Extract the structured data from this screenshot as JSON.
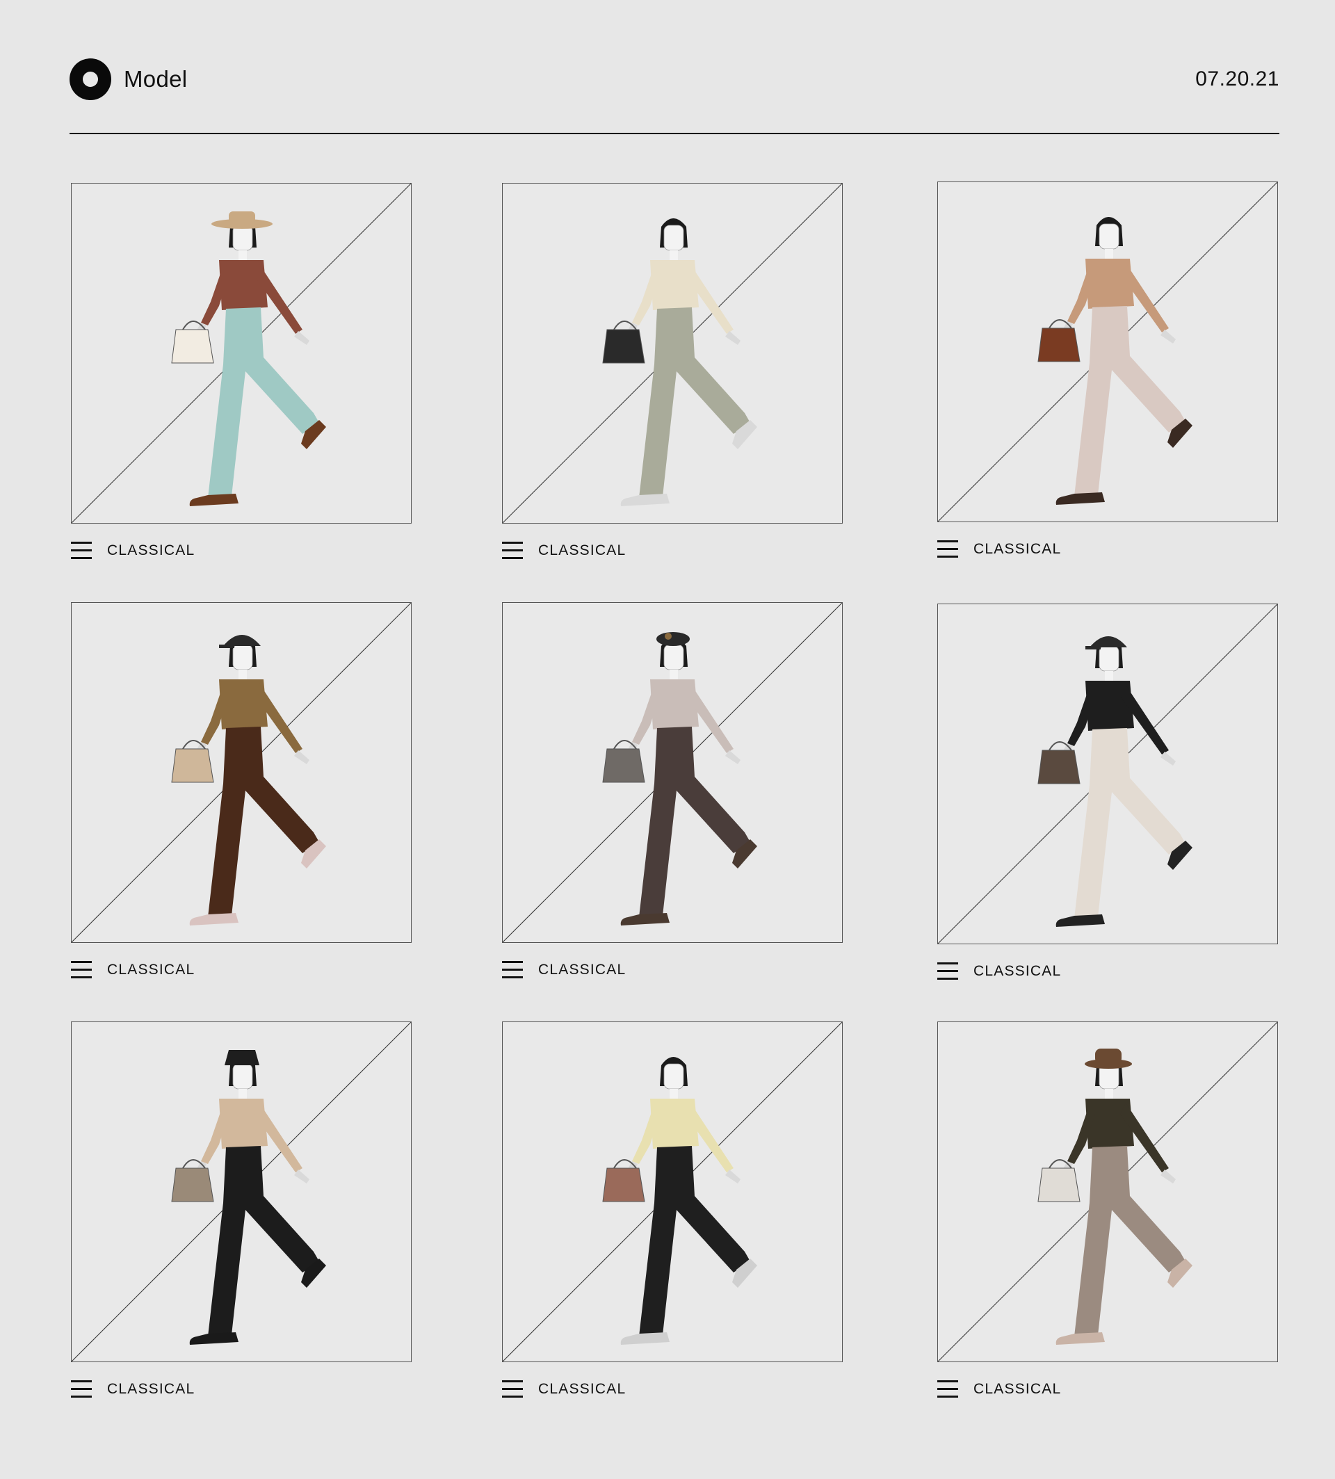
{
  "header": {
    "brand": "Model",
    "date": "07.20.21"
  },
  "cards": [
    {
      "label": "CLASSICAL",
      "hat": "straw-hat",
      "top": "#8a4a3a",
      "pants": "#9fc9c4",
      "shoes": "#6b3b1f",
      "bag": "#f2ece2"
    },
    {
      "label": "CLASSICAL",
      "hat": "none",
      "top": "#e8dfc9",
      "pants": "#a9ab9a",
      "shoes": "#d9d9d9",
      "bag": "#2a2a2a"
    },
    {
      "label": "CLASSICAL",
      "hat": "none",
      "top": "#c69a7a",
      "pants": "#d9c9c2",
      "shoes": "#3a2a22",
      "bag": "#7a3b22"
    },
    {
      "label": "CLASSICAL",
      "hat": "cap",
      "top": "#8a6a3e",
      "pants": "#4a2a1a",
      "shoes": "#d9c3c0",
      "bag": "#cfb79a"
    },
    {
      "label": "CLASSICAL",
      "hat": "beret",
      "top": "#c9bdb8",
      "pants": "#4a3d3a",
      "shoes": "#4a3a30",
      "bag": "#6f6a66"
    },
    {
      "label": "CLASSICAL",
      "hat": "cap",
      "top": "#1e1e1e",
      "pants": "#e3dbd2",
      "shoes": "#222222",
      "bag": "#5a4a3f"
    },
    {
      "label": "CLASSICAL",
      "hat": "bucket",
      "top": "#d2b89c",
      "pants": "#1c1c1c",
      "shoes": "#1a1a1a",
      "bag": "#9a8a78"
    },
    {
      "label": "CLASSICAL",
      "hat": "none",
      "top": "#e8e0b0",
      "pants": "#1f1f1f",
      "shoes": "#cfcfcf",
      "bag": "#9a6a5a"
    },
    {
      "label": "CLASSICAL",
      "hat": "fedora",
      "top": "#3a3528",
      "pants": "#9b8b80",
      "shoes": "#c9b3a6",
      "bag": "#e0dcd6"
    }
  ]
}
